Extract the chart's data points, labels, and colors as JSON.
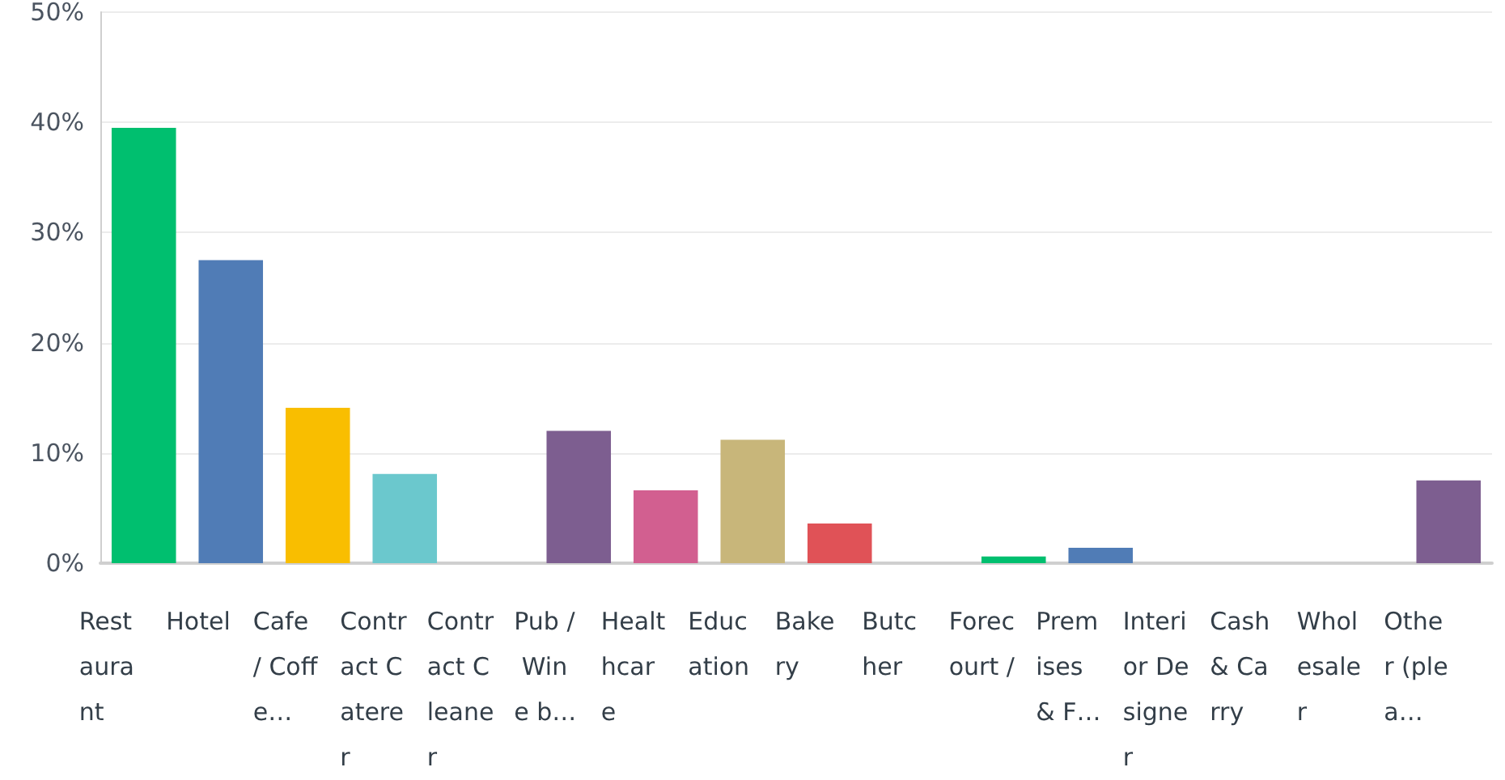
{
  "chart_data": {
    "type": "bar",
    "categories": [
      "Restaurant",
      "Hotel",
      "Cafe / Coffe…",
      "Contract Caterer",
      "Contract Cleaner",
      "Pub / Wine b…",
      "Healthcare",
      "Education",
      "Bakery",
      "Butcher",
      "Forecourt /",
      "Premises & F…",
      "Interior Designer",
      "Cash & Carry",
      "Wholesaler",
      "Other (plea…"
    ],
    "values": [
      39.5,
      27.5,
      14.1,
      8.1,
      0,
      12.0,
      6.6,
      11.2,
      3.6,
      0,
      0.6,
      1.4,
      0,
      0,
      0,
      7.5
    ],
    "colors": [
      "#00bf6f",
      "#507cb6",
      "#f9be00",
      "#6bc8cd",
      "#ff8b4f",
      "#7d5e90",
      "#d25f90",
      "#c8b67a",
      "#e05257",
      "#a3a3a3",
      "#00bf6f",
      "#507cb6",
      "#f9be00",
      "#6bc8cd",
      "#ff8b4f",
      "#7d5e90"
    ],
    "ylim": [
      0,
      50
    ],
    "yticks": [
      {
        "value": 0,
        "label": "0%"
      },
      {
        "value": 10,
        "label": "10%"
      },
      {
        "value": 20,
        "label": "20%"
      },
      {
        "value": 30,
        "label": "30%"
      },
      {
        "value": 40,
        "label": "40%"
      },
      {
        "value": 50,
        "label": "50%"
      }
    ],
    "grid": "y"
  }
}
